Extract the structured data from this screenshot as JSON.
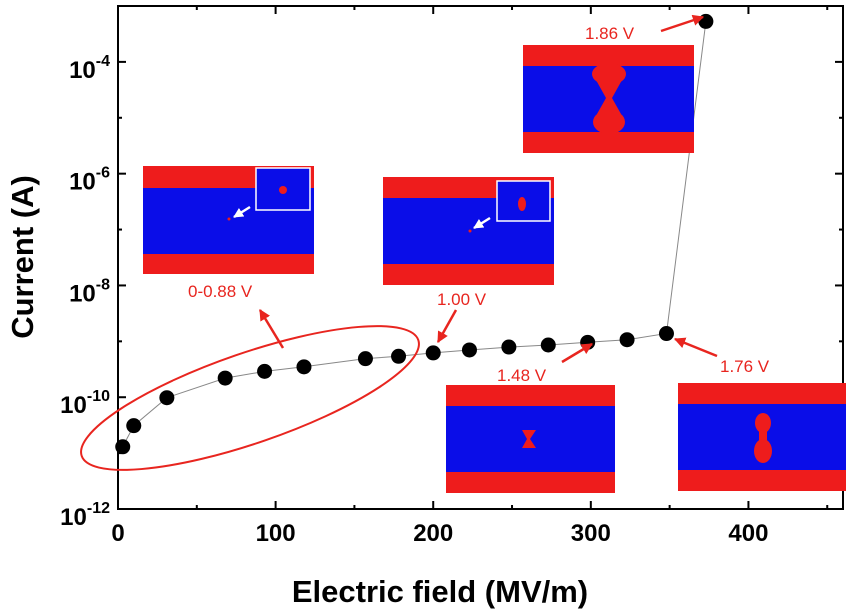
{
  "chart_data": {
    "type": "scatter",
    "xlabel": "Electric field (MV/m)",
    "ylabel": "Current (A)",
    "xlim": [
      0,
      460
    ],
    "ylim": [
      1e-12,
      0.001
    ],
    "yscale": "log",
    "x_ticks": [
      {
        "value": 0,
        "label": "0"
      },
      {
        "value": 100,
        "label": "100"
      },
      {
        "value": 200,
        "label": "200"
      },
      {
        "value": 300,
        "label": "300"
      },
      {
        "value": 400,
        "label": "400"
      }
    ],
    "y_ticks": [
      {
        "exp": -12,
        "base": "10",
        "sup": "-12"
      },
      {
        "exp": -10,
        "base": "10",
        "sup": "-10"
      },
      {
        "exp": -8,
        "base": "10",
        "sup": "-8"
      },
      {
        "exp": -6,
        "base": "10",
        "sup": "-6"
      },
      {
        "exp": -4,
        "base": "10",
        "sup": "-4"
      }
    ],
    "series": [
      {
        "marker": "circle",
        "color": "#000000",
        "line_color": "#888888",
        "points": [
          [
            3,
            1.3e-11
          ],
          [
            10,
            3.1e-11
          ],
          [
            31,
            9.8e-11
          ],
          [
            68,
            2.2e-10
          ],
          [
            93,
            2.9e-10
          ],
          [
            118,
            3.5e-10
          ],
          [
            157,
            4.9e-10
          ],
          [
            178,
            5.4e-10
          ],
          [
            200,
            6.2e-10
          ],
          [
            223,
            7e-10
          ],
          [
            248,
            7.9e-10
          ],
          [
            273,
            8.6e-10
          ],
          [
            298,
            9.6e-10
          ],
          [
            323,
            1.07e-09
          ],
          [
            348,
            1.38e-09
          ],
          [
            373,
            0.00053
          ]
        ]
      }
    ],
    "annotations": [
      {
        "id": "a1",
        "text": "0-0.88 V",
        "inset": "small-dot"
      },
      {
        "id": "a2",
        "text": "1.00 V",
        "inset": "small-dot-2"
      },
      {
        "id": "a3",
        "text": "1.48 V",
        "inset": "bowtie"
      },
      {
        "id": "a4",
        "text": "1.76 V",
        "inset": "elongated"
      },
      {
        "id": "a5",
        "text": "1.86 V",
        "inset": "breakdown"
      }
    ],
    "colors": {
      "electrode": "#ee1c1c",
      "dielectric": "#0a0de8",
      "annotation": "#e8251f"
    }
  }
}
